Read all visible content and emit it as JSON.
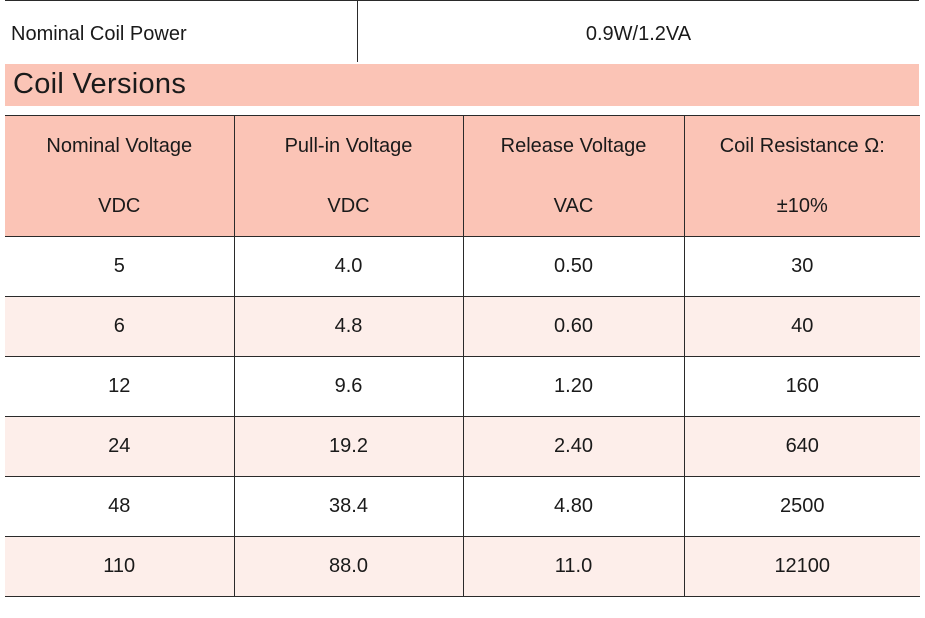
{
  "top_row": {
    "label": "Nominal Coil Power",
    "value": "0.9W/1.2VA"
  },
  "section_title": "Coil Versions",
  "table": {
    "headers": [
      {
        "line1": "Nominal Voltage",
        "line2": "VDC"
      },
      {
        "line1": "Pull-in Voltage",
        "line2": "VDC"
      },
      {
        "line1": "Release Voltage",
        "line2": "VAC"
      },
      {
        "line1": "Coil Resistance Ω:",
        "line2": "±10%"
      }
    ],
    "rows": [
      [
        "5",
        "4.0",
        "0.50",
        "30"
      ],
      [
        "6",
        "4.8",
        "0.60",
        "40"
      ],
      [
        "12",
        "9.6",
        "1.20",
        "160"
      ],
      [
        "24",
        "19.2",
        "2.40",
        "640"
      ],
      [
        "48",
        "38.4",
        "4.80",
        "2500"
      ],
      [
        "110",
        "88.0",
        "11.0",
        "12100"
      ]
    ]
  },
  "colors": {
    "header_bg": "#fbc4b6",
    "stripe_bg": "#fdeeea",
    "border": "#2a2a2a"
  }
}
